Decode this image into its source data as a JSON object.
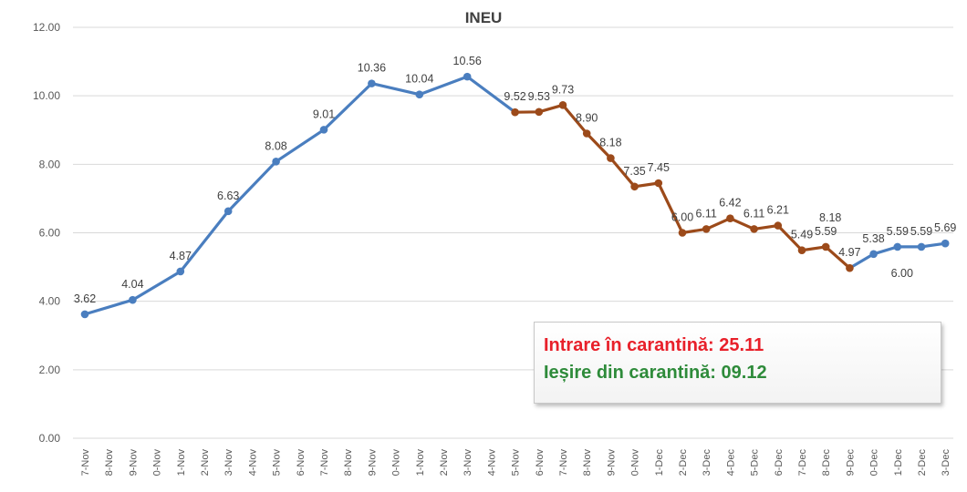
{
  "chart_data": {
    "type": "line",
    "title": "INEU",
    "xlabel": "",
    "ylabel": "",
    "ylim": [
      0,
      12
    ],
    "yticks": [
      "0.00",
      "2.00",
      "4.00",
      "6.00",
      "8.00",
      "10.00",
      "12.00"
    ],
    "grid": true,
    "categories": [
      "7-Nov",
      "8-Nov",
      "9-Nov",
      "0-Nov",
      "1-Nov",
      "2-Nov",
      "3-Nov",
      "4-Nov",
      "5-Nov",
      "6-Nov",
      "7-Nov",
      "8-Nov",
      "9-Nov",
      "0-Nov",
      "1-Nov",
      "2-Nov",
      "3-Nov",
      "4-Nov",
      "5-Nov",
      "6-Nov",
      "7-Nov",
      "8-Nov",
      "9-Nov",
      "0-Nov",
      "1-Dec",
      "2-Dec",
      "3-Dec",
      "4-Dec",
      "5-Dec",
      "6-Dec",
      "7-Dec",
      "8-Dec",
      "9-Dec",
      "0-Dec",
      "1-Dec",
      "2-Dec",
      "3-Dec"
    ],
    "points": [
      {
        "xi": 0,
        "y": 3.62,
        "label": "3.62"
      },
      {
        "xi": 2,
        "y": 4.04,
        "label": "4.04"
      },
      {
        "xi": 4,
        "y": 4.87,
        "label": "4.87"
      },
      {
        "xi": 6,
        "y": 6.63,
        "label": "6.63"
      },
      {
        "xi": 8,
        "y": 8.08,
        "label": "8.08"
      },
      {
        "xi": 10,
        "y": 9.01,
        "label": "9.01"
      },
      {
        "xi": 12,
        "y": 10.36,
        "label": "10.36"
      },
      {
        "xi": 14,
        "y": 10.04,
        "label": "10.04"
      },
      {
        "xi": 16,
        "y": 10.56,
        "label": "10.56"
      },
      {
        "xi": 18,
        "y": 9.52,
        "label": "9.52"
      },
      {
        "xi": 19,
        "y": 9.53,
        "label": "9.53"
      },
      {
        "xi": 20,
        "y": 9.73,
        "label": "9.73"
      },
      {
        "xi": 21,
        "y": 8.9,
        "label": "8.90"
      },
      {
        "xi": 22,
        "y": 8.18,
        "label": "8.18"
      },
      {
        "xi": 23,
        "y": 7.35,
        "label": "7.35"
      },
      {
        "xi": 24,
        "y": 7.45,
        "label": "7.45"
      },
      {
        "xi": 25,
        "y": 6.0,
        "label": "6.00"
      },
      {
        "xi": 26,
        "y": 6.11,
        "label": "6.11"
      },
      {
        "xi": 27,
        "y": 6.42,
        "label": "6.42"
      },
      {
        "xi": 28,
        "y": 6.11,
        "label": "6.11"
      },
      {
        "xi": 29,
        "y": 6.21,
        "label": "6.21"
      },
      {
        "xi": 30,
        "y": 5.49,
        "label": "5.49"
      },
      {
        "xi": 31,
        "y": 5.59,
        "label": "5.59"
      },
      {
        "xi": 32,
        "y": 4.97,
        "label": "4.97"
      },
      {
        "xi": 33,
        "y": 5.38,
        "label": "5.38"
      },
      {
        "xi": 34,
        "y": 5.59,
        "label": "5.59"
      },
      {
        "xi": 35,
        "y": 5.59,
        "label": "5.59"
      },
      {
        "xi": 36,
        "y": 5.69,
        "label": "5.69"
      }
    ],
    "series": [
      {
        "color": "#4a7ebf",
        "from": 0,
        "to": 9
      },
      {
        "color": "#9c4a1a",
        "from": 9,
        "to": 23
      },
      {
        "color": "#4a7ebf",
        "from": 23,
        "to": 27
      }
    ],
    "extra_labels": [
      {
        "label": "8.18",
        "near": 22
      },
      {
        "label": "6.00",
        "near": 25
      }
    ]
  },
  "annotation": {
    "entry_text": "Intrare în carantină: 25.11",
    "exit_text": "Ieșire din carantină: 09.12",
    "entry_color": "#e8202a",
    "exit_color": "#2e8b3a"
  }
}
